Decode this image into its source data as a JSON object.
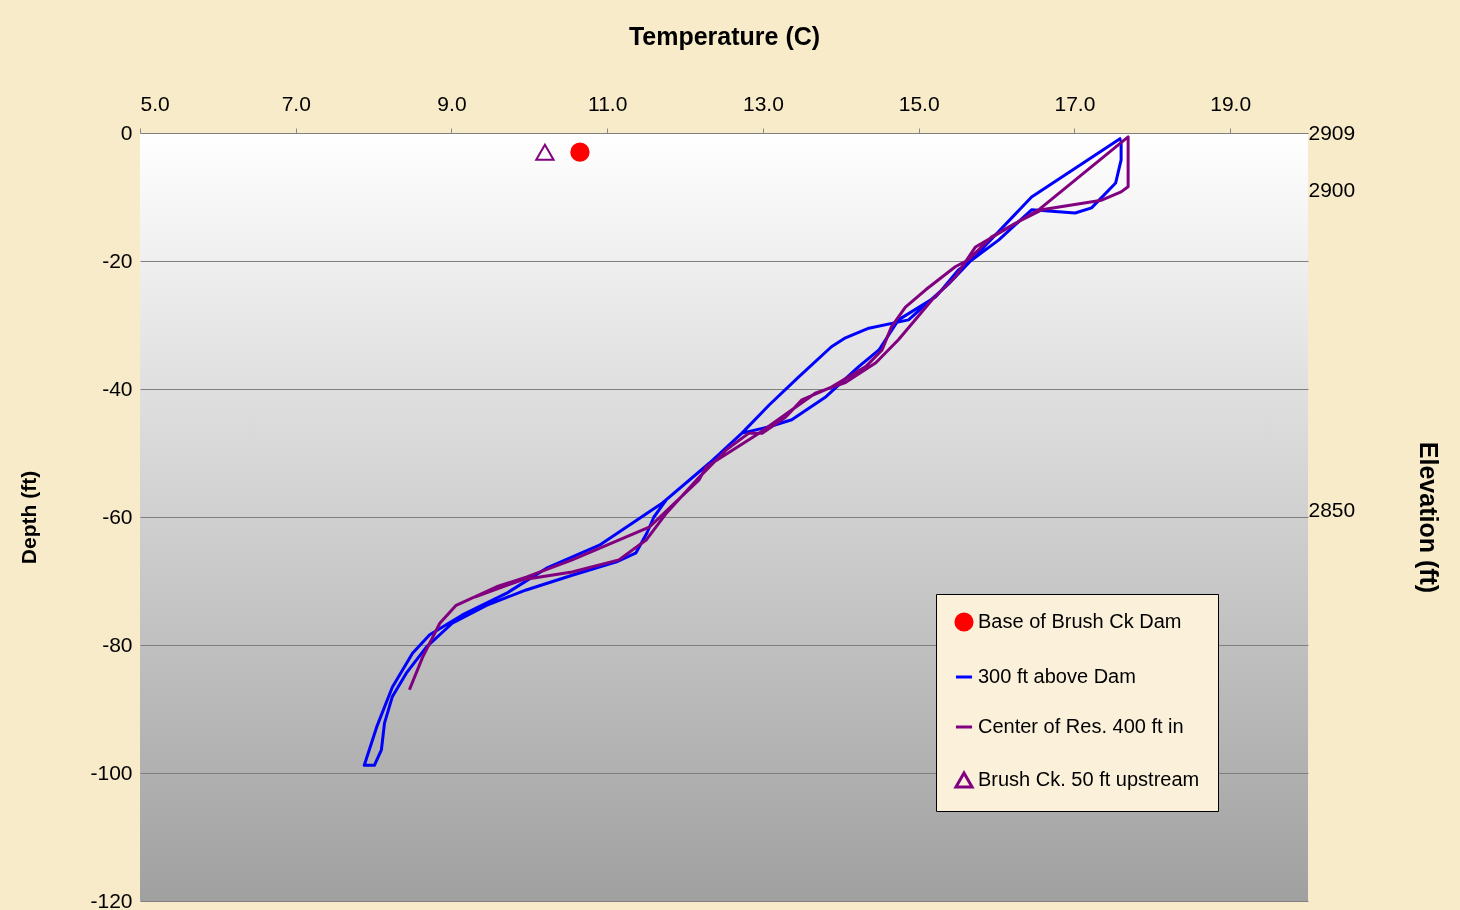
{
  "chart_data": {
    "type": "line",
    "xlabel": "Temperature (C)",
    "ylabel": "Depth (ft)",
    "y2label": "Elevation (ft)",
    "xlim": [
      5,
      20
    ],
    "xticks": [
      {
        "value": 5,
        "label": "5.0"
      },
      {
        "value": 7,
        "label": "7.0"
      },
      {
        "value": 9,
        "label": "9.0"
      },
      {
        "value": 11,
        "label": "11.0"
      },
      {
        "value": 13,
        "label": "13.0"
      },
      {
        "value": 15,
        "label": "15.0"
      },
      {
        "value": 17,
        "label": "17.0"
      },
      {
        "value": 19,
        "label": "19.0"
      }
    ],
    "ylim": [
      -120,
      0
    ],
    "yticks": [
      0,
      -20,
      -40,
      -60,
      -80,
      -100,
      -120
    ],
    "y2lim": [
      2789,
      2909
    ],
    "y2ticks": [
      2909,
      2900,
      2850
    ],
    "grid": "y",
    "legend": "bottom right",
    "series": [
      {
        "name": "Base of Brush Ck Dam",
        "type": "scatter",
        "marker": "circle",
        "color": "#ff0000",
        "x": [
          10.65
        ],
        "values": [
          -3
        ]
      },
      {
        "name": "300 ft above Dam",
        "color": "#0000ff",
        "x": [
          17.6,
          16.45,
          15.4,
          14.87,
          14.36,
          14.06,
          13.88,
          13.46,
          13.08,
          12.73,
          12.31,
          11.71,
          10.9,
          10.22,
          9.71,
          9.14,
          8.72,
          8.5,
          8.24,
          8.04,
          7.88,
          8.01,
          8.1,
          8.14,
          8.24,
          8.42,
          8.68,
          9.01,
          9.45,
          9.96,
          10.55,
          11.12,
          11.37,
          11.51,
          11.6,
          11.76,
          12.31,
          12.73,
          13.08,
          13.37,
          13.81,
          14.23,
          14.49,
          14.74,
          15.22,
          15.51,
          16.03,
          16.45,
          17.01,
          17.22,
          17.53,
          17.6,
          17.6
        ],
        "values": [
          -0.8,
          -10,
          -23.4,
          -29.2,
          -30.5,
          -32,
          -33.4,
          -38.1,
          -42.5,
          -46.9,
          -51.6,
          -57.8,
          -64.4,
          -68,
          -71.9,
          -75.3,
          -78.4,
          -81.3,
          -86.6,
          -92.8,
          -98.8,
          -98.8,
          -96.4,
          -92.2,
          -88.1,
          -84.4,
          -80.3,
          -76.6,
          -73.8,
          -71.4,
          -69.1,
          -67,
          -65.6,
          -62.5,
          -60,
          -57.3,
          -51.6,
          -46.9,
          -45.9,
          -44.8,
          -41.2,
          -36.5,
          -33.9,
          -29.2,
          -25.6,
          -21.4,
          -16.7,
          -12,
          -12.5,
          -11.7,
          -7.8,
          -4.2,
          -1.1
        ]
      },
      {
        "name": "Center of Res. 400 ft in",
        "color": "#800080",
        "x": [
          8.46,
          8.63,
          8.85,
          9.06,
          9.58,
          9.96,
          10.55,
          11.54,
          12.18,
          12.27,
          12.95,
          13.68,
          14.06,
          14.45,
          14.74,
          15.17,
          15.47,
          15.73,
          16.54,
          17.69,
          17.69,
          17.6,
          17.35,
          16.58,
          16.24,
          15.94,
          15.64,
          15.47,
          15.09,
          14.83,
          14.65,
          14.53,
          14.32,
          13.88,
          13.5,
          13.29,
          12.99,
          12.82,
          12.53,
          12.18,
          11.76,
          11.5,
          11.15,
          10.55,
          9.91,
          9.3
        ],
        "values": [
          -87,
          -81.9,
          -76.6,
          -73.8,
          -70.9,
          -69.4,
          -66.7,
          -61.6,
          -54.2,
          -52.2,
          -46.9,
          -40.6,
          -39,
          -35.9,
          -32.3,
          -26.1,
          -22.5,
          -17.8,
          -12,
          -0.6,
          -8.4,
          -9.2,
          -10.5,
          -12,
          -14.1,
          -16.2,
          -19.8,
          -20.9,
          -24.5,
          -27.2,
          -30.3,
          -33.9,
          -36.5,
          -39.7,
          -41.7,
          -44.4,
          -46.9,
          -46.9,
          -49.5,
          -53.8,
          -59.4,
          -63.6,
          -66.7,
          -68.6,
          -69.8,
          -72.5
        ]
      },
      {
        "name": "Brush Ck. 50 ft upstream",
        "type": "scatter",
        "marker": "triangle",
        "color": "#800080",
        "x": [
          10.2
        ],
        "values": [
          -3
        ]
      }
    ]
  }
}
